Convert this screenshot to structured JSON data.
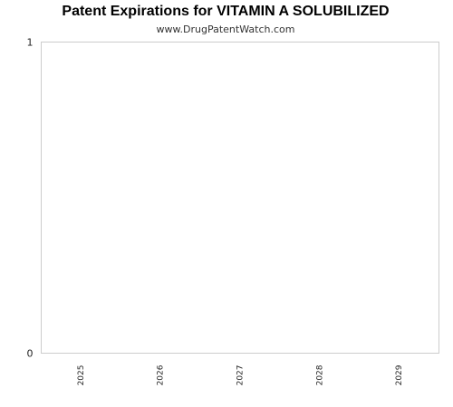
{
  "chart_data": {
    "type": "bar",
    "title": "Patent Expirations for VITAMIN A SOLUBILIZED",
    "subtitle": "www.DrugPatentWatch.com",
    "xlabel": "",
    "ylabel": "",
    "categories": [
      "2025",
      "2026",
      "2027",
      "2028",
      "2029"
    ],
    "series": [
      {
        "values": [
          0,
          0,
          0,
          0,
          0
        ]
      }
    ],
    "ylim": [
      0,
      1
    ],
    "yticks": [
      "0",
      "1"
    ],
    "grid": false,
    "legend": "none",
    "colors": {
      "frame": "#cccccc",
      "bar": "#4a7ebb"
    }
  }
}
